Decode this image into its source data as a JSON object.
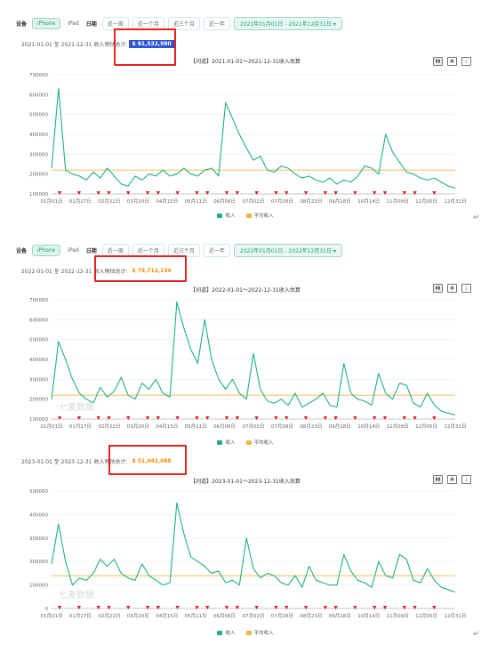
{
  "common": {
    "device_label": "设备",
    "iphone": "iPhone",
    "ipad": "iPad",
    "date_label": "日期",
    "range_week": "近一周",
    "range_month": "近一个月",
    "range_3month": "近三个月",
    "range_year": "近一年",
    "legend_income": "收入",
    "legend_avg": "平均收入",
    "watermark": "七麦数据",
    "colors": {
      "income": "#20b08a",
      "avg": "#f5b342",
      "accent": "#1aa37a",
      "marker": "#e02020",
      "highlight": "#2f55d4"
    },
    "icons": [
      "bar-chart-icon",
      "line-chart-icon",
      "image-icon",
      "download-icon"
    ]
  },
  "panels": [
    {
      "date_select": "2021年01月01日 - 2021年12月31日",
      "total_prefix": "2021-01-01 至 2021-12-31 收入预估总计:",
      "total_value": "$ 81,532,980",
      "title": "【问道】2021-01-01～2021-12-31收入估算",
      "ticks_y": [
        "700000",
        "600000",
        "500000",
        "400000",
        "300000",
        "200000",
        "100000"
      ],
      "ticks_x": [
        "01月01日",
        "01月27日",
        "02月22日",
        "03月20日",
        "04月15日",
        "05月11日",
        "06月06日",
        "07月02日",
        "07月28日",
        "08月23日",
        "09月18日",
        "10月14日",
        "11月09日",
        "12月05日",
        "12月31日"
      ]
    },
    {
      "date_select": "2022年01月01日 - 2022年12月31日",
      "total_prefix": "2022-01-01 至 2022-12-31 收入预估总计:",
      "total_value": "$ 79,712,134",
      "title": "【问道】2022-01-01～2022-12-31收入估算",
      "ticks_y": [
        "700000",
        "600000",
        "500000",
        "400000",
        "300000",
        "200000",
        "100000"
      ],
      "ticks_x": [
        "01月01日",
        "01月27日",
        "02月22日",
        "03月20日",
        "04月15日",
        "05月11日",
        "06月06日",
        "07月02日",
        "07月28日",
        "08月23日",
        "09月18日",
        "10月14日",
        "11月09日",
        "12月05日",
        "12月31日"
      ]
    },
    {
      "total_prefix": "2023-01-01 至 2023-12-31 收入预估总计:",
      "total_value": "$ 51,042,088",
      "title": "【问道】2023-01-01～2023-12-31收入估算",
      "ticks_y": [
        "500000",
        "400000",
        "300000",
        "200000",
        "100000",
        "0"
      ],
      "ticks_x": [
        "01月01日",
        "01月27日",
        "02月22日",
        "03月20日",
        "04月15日",
        "05月11日",
        "06月06日",
        "07月02日",
        "07月28日",
        "08月23日",
        "09月18日",
        "10月14日",
        "11月09日",
        "12月05日",
        "12月31日"
      ]
    }
  ],
  "chart_data": [
    {
      "type": "line",
      "title": "【问道】2021-01-01～2021-12-31收入估算",
      "ylim": [
        100000,
        700000
      ],
      "avg_line": 220000,
      "series": [
        {
          "name": "收入",
          "values": [
            230000,
            630000,
            220000,
            200000,
            190000,
            170000,
            210000,
            180000,
            230000,
            190000,
            150000,
            140000,
            190000,
            170000,
            200000,
            190000,
            220000,
            190000,
            200000,
            230000,
            200000,
            190000,
            220000,
            230000,
            190000,
            560000,
            480000,
            400000,
            330000,
            270000,
            290000,
            220000,
            210000,
            240000,
            230000,
            200000,
            180000,
            190000,
            170000,
            160000,
            180000,
            150000,
            170000,
            160000,
            190000,
            240000,
            230000,
            200000,
            400000,
            310000,
            260000,
            210000,
            200000,
            180000,
            170000,
            180000,
            160000,
            140000,
            130000
          ]
        },
        {
          "name": "平均收入",
          "values": [
            220000
          ]
        }
      ]
    },
    {
      "type": "line",
      "title": "【问道】2022-01-01～2022-12-31收入估算",
      "ylim": [
        100000,
        700000
      ],
      "avg_line": 220000,
      "series": [
        {
          "name": "收入",
          "values": [
            200000,
            490000,
            400000,
            300000,
            230000,
            200000,
            180000,
            260000,
            210000,
            240000,
            310000,
            220000,
            200000,
            280000,
            250000,
            300000,
            230000,
            210000,
            690000,
            560000,
            450000,
            380000,
            600000,
            400000,
            300000,
            250000,
            300000,
            230000,
            200000,
            430000,
            250000,
            190000,
            180000,
            200000,
            170000,
            230000,
            160000,
            180000,
            200000,
            230000,
            170000,
            160000,
            380000,
            230000,
            200000,
            190000,
            170000,
            330000,
            230000,
            200000,
            280000,
            270000,
            180000,
            160000,
            230000,
            170000,
            140000,
            130000,
            120000
          ]
        },
        {
          "name": "平均收入",
          "values": [
            220000
          ]
        }
      ]
    },
    {
      "type": "line",
      "title": "【问道】2023-01-01～2023-12-31收入估算",
      "ylim": [
        0,
        500000
      ],
      "avg_line": 140000,
      "series": [
        {
          "name": "收入",
          "values": [
            190000,
            360000,
            200000,
            100000,
            130000,
            120000,
            150000,
            210000,
            180000,
            210000,
            150000,
            130000,
            120000,
            190000,
            140000,
            120000,
            100000,
            110000,
            450000,
            320000,
            220000,
            200000,
            180000,
            150000,
            160000,
            110000,
            120000,
            100000,
            300000,
            170000,
            130000,
            150000,
            140000,
            110000,
            100000,
            140000,
            90000,
            180000,
            120000,
            110000,
            100000,
            100000,
            230000,
            160000,
            120000,
            110000,
            90000,
            200000,
            140000,
            130000,
            230000,
            210000,
            120000,
            110000,
            170000,
            120000,
            90000,
            80000,
            70000
          ]
        },
        {
          "name": "平均收入",
          "values": [
            140000
          ]
        }
      ]
    }
  ]
}
